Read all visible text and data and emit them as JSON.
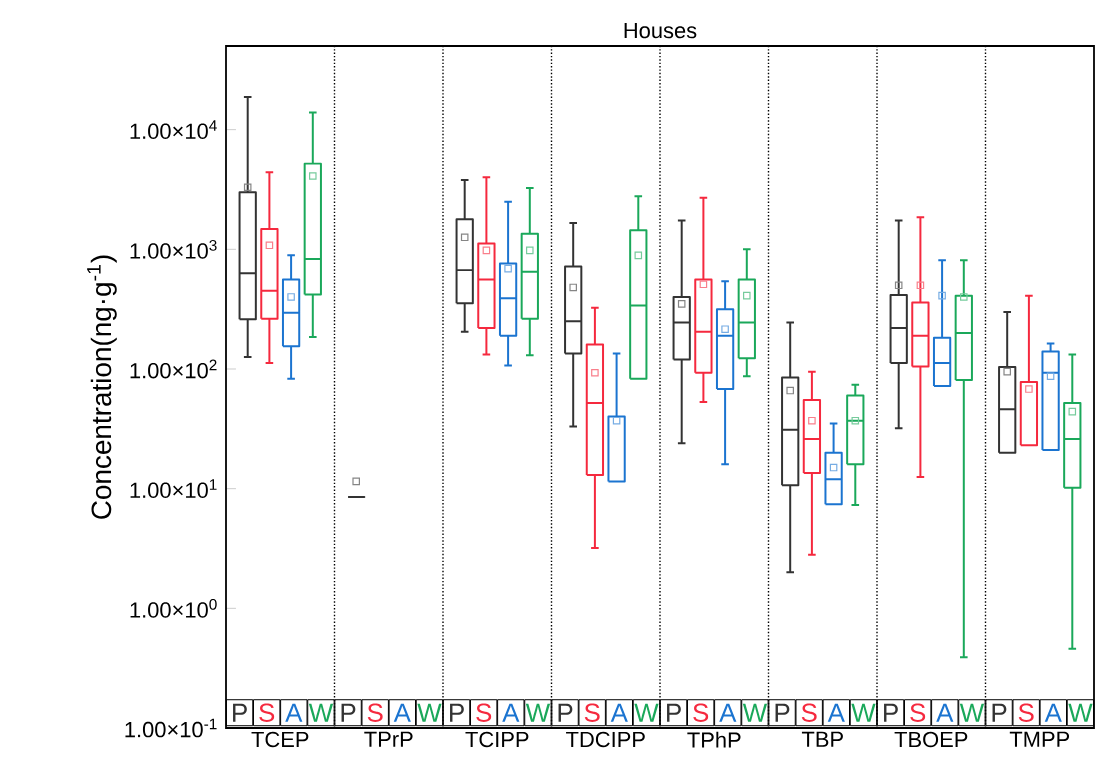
{
  "chart_data": {
    "type": "box",
    "title": "Houses",
    "ylabel": "Concentration(ng·g$^{-1}$)",
    "categories": [
      "TCEP",
      "TPrP",
      "TCIPP",
      "TDCIPP",
      "TPhP",
      "TBP",
      "TBOEP",
      "TMPP"
    ],
    "log": true,
    "ylim": [
      0.1,
      50000
    ],
    "yticks": [
      {
        "value": 0.1,
        "label": "1.00×10$^{-1}$"
      },
      {
        "value": 1,
        "label": "1.00×10$^{0}$"
      },
      {
        "value": 10,
        "label": "1.00×10$^{1}$"
      },
      {
        "value": 100,
        "label": "1.00×10$^{2}$"
      },
      {
        "value": 1000,
        "label": "1.00×10$^{3}$"
      },
      {
        "value": 10000,
        "label": "1.00×10$^{4}$"
      }
    ],
    "series": [
      {
        "name": "P",
        "color": "#333333",
        "boxes": [
          {
            "low": 126,
            "q1": 260,
            "median": 630,
            "q3": 3000,
            "high": 18700,
            "mean": 3300
          },
          {
            "low": 8.5,
            "q1": 8.5,
            "median": 8.5,
            "q3": 8.5,
            "high": 8.5,
            "mean": 11.5
          },
          {
            "low": 205,
            "q1": 355,
            "median": 670,
            "q3": 1780,
            "high": 3800,
            "mean": 1260
          },
          {
            "low": 33,
            "q1": 135,
            "median": 250,
            "q3": 720,
            "high": 1660,
            "mean": 480
          },
          {
            "low": 24,
            "q1": 120,
            "median": 245,
            "q3": 400,
            "high": 1740,
            "mean": 350
          },
          {
            "low": 2,
            "q1": 10.7,
            "median": 31,
            "q3": 85,
            "high": 245,
            "mean": 66
          },
          {
            "low": 32,
            "q1": 112,
            "median": 220,
            "q3": 415,
            "high": 1740,
            "mean": 500
          },
          {
            "low": 20,
            "q1": 20,
            "median": 46,
            "q3": 104,
            "high": 300,
            "mean": 95
          }
        ]
      },
      {
        "name": "S",
        "color": "#f5293e",
        "boxes": [
          {
            "low": 112,
            "q1": 263,
            "median": 450,
            "q3": 1480,
            "high": 4400,
            "mean": 1080
          },
          null,
          {
            "low": 132,
            "q1": 220,
            "median": 560,
            "q3": 1120,
            "high": 4000,
            "mean": 980
          },
          {
            "low": 3.2,
            "q1": 13,
            "median": 52,
            "q3": 160,
            "high": 325,
            "mean": 93
          },
          {
            "low": 53,
            "q1": 93,
            "median": 205,
            "q3": 560,
            "high": 2700,
            "mean": 510
          },
          {
            "low": 2.8,
            "q1": 13.5,
            "median": 26,
            "q3": 55,
            "high": 95,
            "mean": 37
          },
          {
            "low": 12.5,
            "q1": 105,
            "median": 190,
            "q3": 360,
            "high": 1850,
            "mean": 500
          },
          {
            "low": 23,
            "q1": 23,
            "median": 23,
            "q3": 78,
            "high": 410,
            "mean": 68
          }
        ]
      },
      {
        "name": "A",
        "color": "#1b74d0",
        "boxes": [
          {
            "low": 83,
            "q1": 155,
            "median": 295,
            "q3": 560,
            "high": 890,
            "mean": 400
          },
          null,
          {
            "low": 107,
            "q1": 190,
            "median": 390,
            "q3": 760,
            "high": 2500,
            "mean": 690
          },
          {
            "low": 11.5,
            "q1": 11.5,
            "median": 11.5,
            "q3": 40,
            "high": 135,
            "mean": 37
          },
          {
            "low": 16,
            "q1": 68,
            "median": 190,
            "q3": 315,
            "high": 540,
            "mean": 215
          },
          {
            "low": 7.4,
            "q1": 7.4,
            "median": 12,
            "q3": 20,
            "high": 35,
            "mean": 15
          },
          {
            "low": 72,
            "q1": 72,
            "median": 112,
            "q3": 182,
            "high": 810,
            "mean": 410
          },
          {
            "low": 21,
            "q1": 21,
            "median": 93,
            "q3": 140,
            "high": 163,
            "mean": 87
          }
        ]
      },
      {
        "name": "W",
        "color": "#1aa85a",
        "boxes": [
          {
            "low": 185,
            "q1": 420,
            "median": 830,
            "q3": 5200,
            "high": 13900,
            "mean": 4100
          },
          null,
          {
            "low": 130,
            "q1": 263,
            "median": 650,
            "q3": 1350,
            "high": 3250,
            "mean": 980
          },
          {
            "low": 83,
            "q1": 83,
            "median": 340,
            "q3": 1440,
            "high": 2770,
            "mean": 890
          },
          {
            "low": 87,
            "q1": 123,
            "median": 245,
            "q3": 560,
            "high": 1000,
            "mean": 410
          },
          {
            "low": 7.3,
            "q1": 16,
            "median": 37,
            "q3": 60,
            "high": 74,
            "mean": 37
          },
          {
            "low": 0.39,
            "q1": 81,
            "median": 200,
            "q3": 410,
            "high": 810,
            "mean": 400
          },
          {
            "low": 0.46,
            "q1": 10.2,
            "median": 26,
            "q3": 52,
            "high": 132,
            "mean": 44
          }
        ]
      }
    ]
  }
}
